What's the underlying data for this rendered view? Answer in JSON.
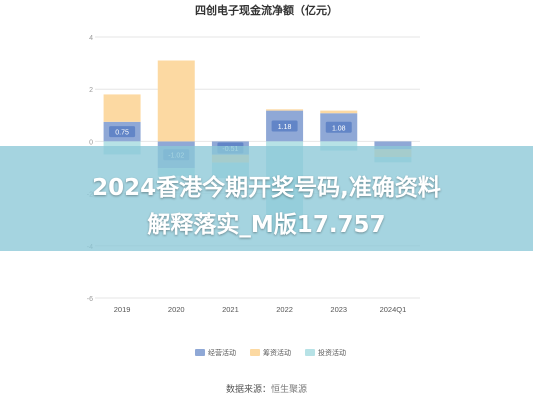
{
  "chart_data": {
    "type": "bar",
    "stacked": true,
    "title": "四创电子现金流净额（亿元）",
    "categories": [
      "2019",
      "2020",
      "2021",
      "2022",
      "2023",
      "2024Q1"
    ],
    "series": [
      {
        "name": "经营活动",
        "color": "#8fa8d6",
        "values": [
          0.75,
          -1.02,
          -0.51,
          1.18,
          1.08,
          -0.3
        ]
      },
      {
        "name": "筹资活动",
        "color": "#fcd9a2",
        "values": [
          1.05,
          3.1,
          -0.3,
          0.05,
          0.1,
          -0.3
        ]
      },
      {
        "name": "投资活动",
        "color": "#b7e2e6",
        "values": [
          -0.5,
          -0.3,
          -0.6,
          -3.5,
          -0.35,
          -0.2
        ]
      }
    ],
    "data_labels": [
      "0.75",
      "-1.02",
      "-0.51",
      "1.18",
      "1.08",
      ""
    ],
    "y_ticks": [
      4,
      2,
      0,
      -2,
      -4,
      -6
    ],
    "ylim": [
      -6,
      4
    ],
    "grid": true,
    "legend_position": "bottom"
  },
  "banner": {
    "line1": "2024香港今期开奖号码,准确资料",
    "line2": "解释落实_M版17.757"
  },
  "credit": {
    "label": "数据来源：",
    "source": "恒生聚源"
  }
}
